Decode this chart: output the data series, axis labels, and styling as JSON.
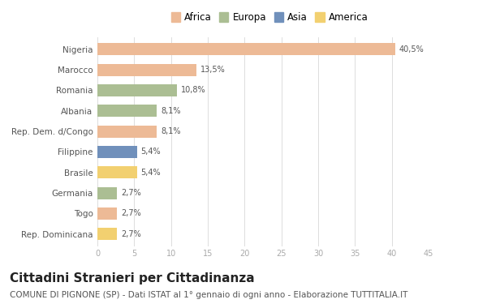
{
  "countries": [
    "Nigeria",
    "Marocco",
    "Romania",
    "Albania",
    "Rep. Dem. d/Congo",
    "Filippine",
    "Brasile",
    "Germania",
    "Togo",
    "Rep. Dominicana"
  ],
  "values": [
    40.5,
    13.5,
    10.8,
    8.1,
    8.1,
    5.4,
    5.4,
    2.7,
    2.7,
    2.7
  ],
  "labels": [
    "40,5%",
    "13,5%",
    "10,8%",
    "8,1%",
    "8,1%",
    "5,4%",
    "5,4%",
    "2,7%",
    "2,7%",
    "2,7%"
  ],
  "colors": [
    "#EDBA96",
    "#EDBA96",
    "#ABBE93",
    "#ABBE93",
    "#EDBA96",
    "#7090BB",
    "#F2D070",
    "#ABBE93",
    "#EDBA96",
    "#F2D070"
  ],
  "legend": [
    {
      "label": "Africa",
      "color": "#EDBA96"
    },
    {
      "label": "Europa",
      "color": "#ABBE93"
    },
    {
      "label": "Asia",
      "color": "#7090BB"
    },
    {
      "label": "America",
      "color": "#F2D070"
    }
  ],
  "xlim": [
    0,
    45
  ],
  "xticks": [
    0,
    5,
    10,
    15,
    20,
    25,
    30,
    35,
    40,
    45
  ],
  "title": "Cittadini Stranieri per Cittadinanza",
  "subtitle": "COMUNE DI PIGNONE (SP) - Dati ISTAT al 1° gennaio di ogni anno - Elaborazione TUTTITALIA.IT",
  "background_color": "#ffffff",
  "bar_height": 0.6,
  "title_fontsize": 11,
  "subtitle_fontsize": 7.5,
  "label_fontsize": 7,
  "tick_fontsize": 7,
  "legend_fontsize": 8.5,
  "ytick_fontsize": 7.5
}
